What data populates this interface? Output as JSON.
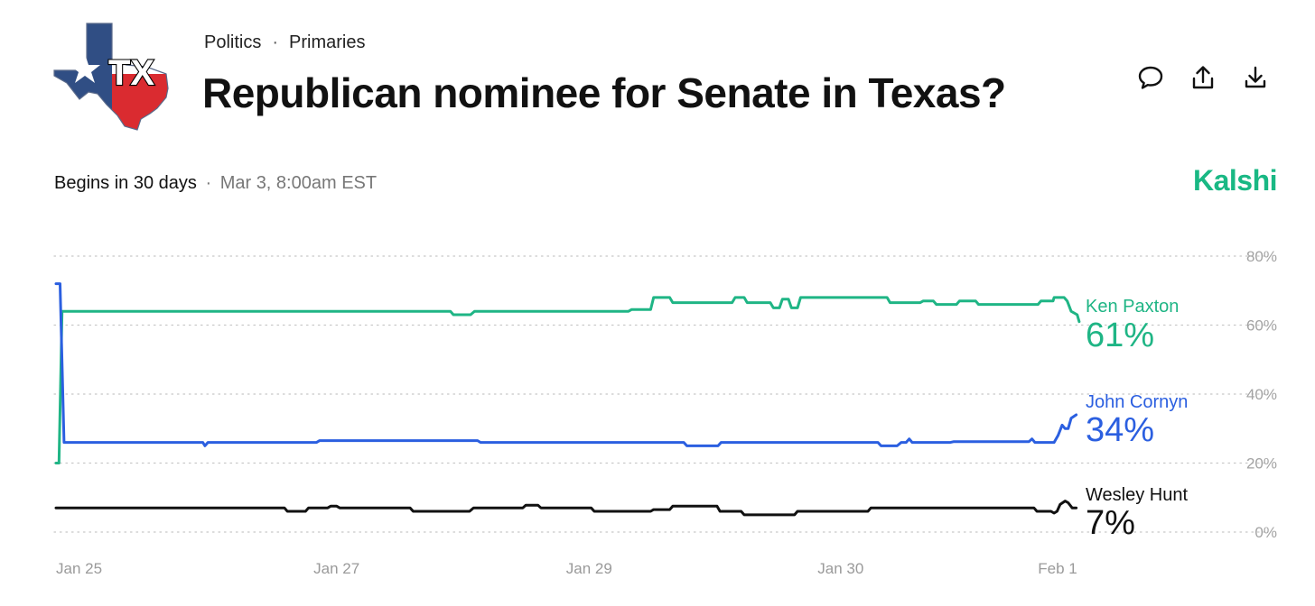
{
  "header": {
    "category": "Politics",
    "subcategory": "Primaries",
    "separator": "·",
    "title": "Republican nominee for Senate in Texas?",
    "logo_text": "TX"
  },
  "actions": [
    {
      "name": "comment-icon"
    },
    {
      "name": "share-icon"
    },
    {
      "name": "download-icon"
    }
  ],
  "meta": {
    "begins": "Begins in 30 days",
    "dot": "·",
    "date": "Mar 3, 8:00am EST"
  },
  "brand": {
    "name": "Kalshi",
    "color": "#19b884"
  },
  "chart_data": {
    "type": "line",
    "title": "Republican nominee for Senate in Texas?",
    "xlabel": "",
    "ylabel": "",
    "ylim": [
      0,
      80
    ],
    "yticks": [
      0,
      20,
      40,
      60,
      80
    ],
    "ytick_format": "{v}%",
    "grid": true,
    "x_range": [
      0,
      100
    ],
    "xticks": [
      {
        "x": 0,
        "label": "Jan 25"
      },
      {
        "x": 25.6,
        "label": "Jan 27"
      },
      {
        "x": 50.7,
        "label": "Jan 29"
      },
      {
        "x": 75.7,
        "label": "Jan 30"
      },
      {
        "x": 97.6,
        "label": "Feb 1"
      }
    ],
    "series": [
      {
        "name": "Ken Paxton",
        "final_label": "61%",
        "color": "#1fb585",
        "points": [
          [
            0,
            20
          ],
          [
            0.3,
            20
          ],
          [
            0.6,
            64
          ],
          [
            39.2,
            64
          ],
          [
            39.5,
            63
          ],
          [
            41.2,
            63
          ],
          [
            41.6,
            64
          ],
          [
            56.9,
            64
          ],
          [
            57.2,
            64.5
          ],
          [
            59.1,
            64.5
          ],
          [
            59.4,
            68
          ],
          [
            61.0,
            68
          ],
          [
            61.3,
            66.5
          ],
          [
            67.2,
            66.5
          ],
          [
            67.5,
            68
          ],
          [
            68.4,
            68
          ],
          [
            68.7,
            66.5
          ],
          [
            71.0,
            66.5
          ],
          [
            71.3,
            65
          ],
          [
            71.9,
            65
          ],
          [
            72.2,
            67.5
          ],
          [
            72.8,
            67.5
          ],
          [
            73.1,
            65
          ],
          [
            73.7,
            65
          ],
          [
            74.0,
            68
          ],
          [
            82.6,
            68
          ],
          [
            82.9,
            66.5
          ],
          [
            85.9,
            66.5
          ],
          [
            86.2,
            67
          ],
          [
            87.2,
            67
          ],
          [
            87.5,
            66
          ],
          [
            89.5,
            66
          ],
          [
            89.8,
            67
          ],
          [
            91.4,
            67
          ],
          [
            91.7,
            66
          ],
          [
            97.6,
            66
          ],
          [
            97.9,
            67
          ],
          [
            99.1,
            67
          ],
          [
            99.2,
            68
          ],
          [
            100.2,
            68
          ],
          [
            100.5,
            67
          ],
          [
            100.9,
            64
          ],
          [
            101.5,
            63
          ],
          [
            101.7,
            61
          ]
        ]
      },
      {
        "name": "John Cornyn",
        "final_label": "34%",
        "color": "#2b5fe0",
        "points": [
          [
            0,
            72
          ],
          [
            0.4,
            72
          ],
          [
            0.8,
            26
          ],
          [
            14.6,
            26
          ],
          [
            14.8,
            25
          ],
          [
            15.1,
            26
          ],
          [
            25.9,
            26
          ],
          [
            26.2,
            26.5
          ],
          [
            41.9,
            26.5
          ],
          [
            42.2,
            26
          ],
          [
            62.4,
            26
          ],
          [
            62.7,
            25
          ],
          [
            65.8,
            25
          ],
          [
            66.1,
            26
          ],
          [
            81.7,
            26
          ],
          [
            82.0,
            25
          ],
          [
            83.6,
            25
          ],
          [
            84.0,
            26
          ],
          [
            84.5,
            26
          ],
          [
            84.8,
            27
          ],
          [
            85.1,
            26
          ],
          [
            88.9,
            26
          ],
          [
            89.2,
            26.2
          ],
          [
            96.7,
            26.2
          ],
          [
            97.0,
            27
          ],
          [
            97.3,
            26
          ],
          [
            99.2,
            26
          ],
          [
            99.6,
            28
          ],
          [
            100.0,
            31
          ],
          [
            100.3,
            30
          ],
          [
            100.6,
            30
          ],
          [
            100.9,
            33
          ],
          [
            101.4,
            34
          ]
        ]
      },
      {
        "name": "Wesley Hunt",
        "final_label": "7%",
        "color": "#111111",
        "points": [
          [
            0,
            7
          ],
          [
            22.7,
            7
          ],
          [
            23.0,
            6
          ],
          [
            24.8,
            6
          ],
          [
            25.1,
            7
          ],
          [
            27.0,
            7
          ],
          [
            27.3,
            7.5
          ],
          [
            27.9,
            7.5
          ],
          [
            28.2,
            7
          ],
          [
            35.2,
            7
          ],
          [
            35.5,
            6
          ],
          [
            41.1,
            6
          ],
          [
            41.5,
            7
          ],
          [
            46.4,
            7
          ],
          [
            46.7,
            7.8
          ],
          [
            47.9,
            7.8
          ],
          [
            48.2,
            7
          ],
          [
            53.2,
            7
          ],
          [
            53.5,
            6
          ],
          [
            59.1,
            6
          ],
          [
            59.4,
            6.5
          ],
          [
            61.0,
            6.5
          ],
          [
            61.3,
            7.5
          ],
          [
            65.7,
            7.5
          ],
          [
            66.0,
            6
          ],
          [
            68.1,
            6
          ],
          [
            68.4,
            5
          ],
          [
            73.4,
            5
          ],
          [
            73.7,
            6
          ],
          [
            80.7,
            6
          ],
          [
            81.0,
            7
          ],
          [
            97.2,
            7
          ],
          [
            97.5,
            6
          ],
          [
            98.9,
            6
          ],
          [
            99.2,
            5.5
          ],
          [
            99.5,
            6
          ],
          [
            99.8,
            8
          ],
          [
            100.3,
            9
          ],
          [
            100.6,
            8.5
          ],
          [
            101.0,
            7
          ],
          [
            101.4,
            7
          ]
        ]
      }
    ]
  }
}
